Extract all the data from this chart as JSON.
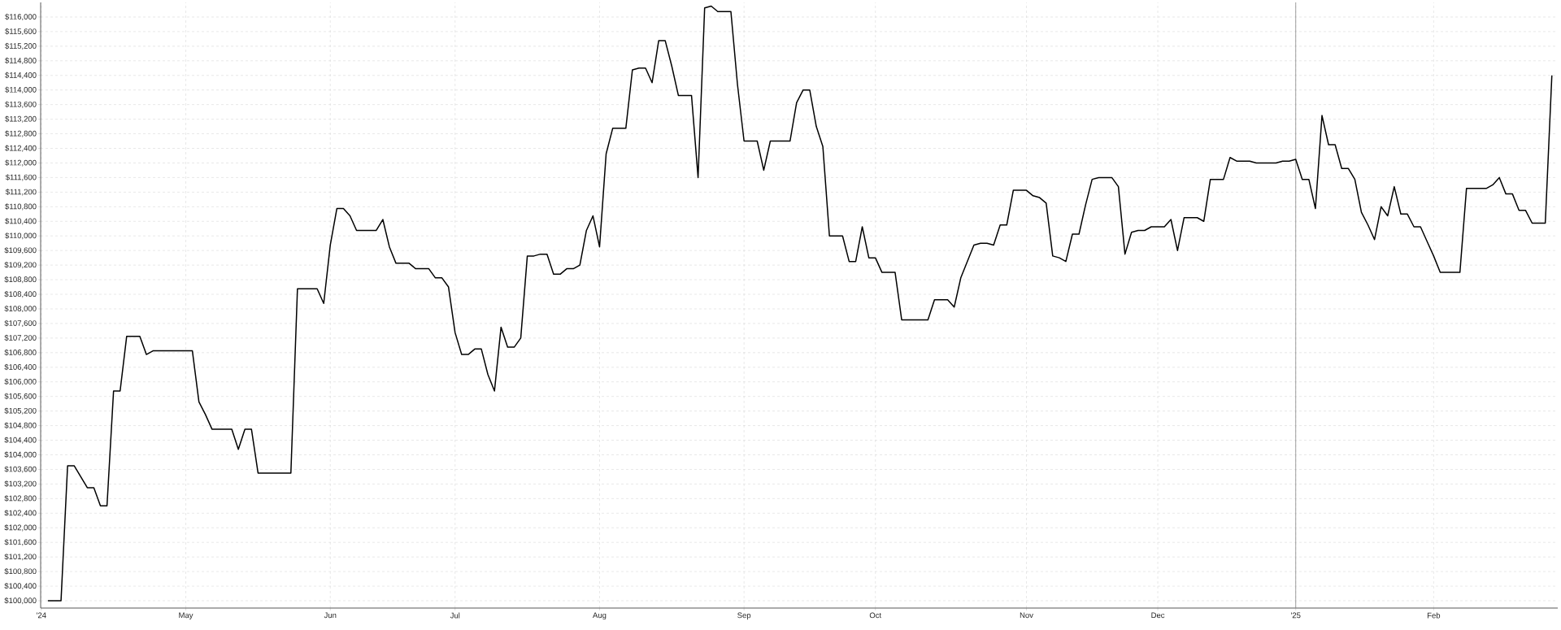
{
  "chart_data": {
    "type": "line",
    "categories": [
      "'24",
      null,
      null,
      null,
      null,
      null,
      null,
      null,
      null,
      null,
      null,
      null,
      null,
      null,
      null,
      null,
      null,
      null,
      null,
      null,
      null,
      null,
      "May",
      null,
      null,
      null,
      null,
      null,
      null,
      null,
      null,
      null,
      null,
      null,
      null,
      null,
      null,
      null,
      null,
      null,
      null,
      null,
      null,
      null,
      "Jun",
      null,
      null,
      null,
      null,
      null,
      null,
      null,
      null,
      null,
      null,
      null,
      null,
      null,
      null,
      null,
      null,
      null,
      null,
      "Jul",
      null,
      null,
      null,
      null,
      null,
      null,
      null,
      null,
      null,
      null,
      null,
      null,
      null,
      null,
      null,
      null,
      null,
      null,
      null,
      null,
      null,
      "Aug",
      null,
      null,
      null,
      null,
      null,
      null,
      null,
      null,
      null,
      null,
      null,
      null,
      null,
      null,
      null,
      null,
      null,
      null,
      null,
      null,
      null,
      "Sep",
      null,
      null,
      null,
      null,
      null,
      null,
      null,
      null,
      null,
      null,
      null,
      null,
      null,
      null,
      null,
      null,
      null,
      null,
      null,
      "Oct",
      null,
      null,
      null,
      null,
      null,
      null,
      null,
      null,
      null,
      null,
      null,
      null,
      null,
      null,
      null,
      null,
      null,
      null,
      null,
      null,
      null,
      null,
      "Nov",
      null,
      null,
      null,
      null,
      null,
      null,
      null,
      null,
      null,
      null,
      null,
      null,
      null,
      null,
      null,
      null,
      null,
      null,
      null,
      "Dec",
      null,
      null,
      null,
      null,
      null,
      null,
      null,
      null,
      null,
      null,
      null,
      null,
      null,
      null,
      null,
      null,
      null,
      null,
      null,
      null,
      "'25",
      null,
      null,
      null,
      null,
      null,
      null,
      null,
      null,
      null,
      null,
      null,
      null,
      null,
      null,
      null,
      null,
      null,
      null,
      null,
      null,
      "Feb",
      null,
      null,
      null,
      null,
      null,
      null,
      null,
      null,
      null,
      null,
      null,
      null,
      null,
      null,
      null,
      null,
      null,
      null
    ],
    "series": [
      {
        "color": "#000000",
        "values": [
          null,
          100000,
          100000,
          100000,
          103700,
          103700,
          103400,
          103100,
          103100,
          102600,
          102600,
          105750,
          105750,
          107250,
          107250,
          107250,
          106750,
          106850,
          106850,
          106850,
          106850,
          106850,
          106850,
          106850,
          105450,
          105100,
          104700,
          104700,
          104700,
          104700,
          104150,
          104700,
          104700,
          103500,
          103500,
          103500,
          103500,
          103500,
          103500,
          108550,
          108550,
          108550,
          108550,
          108150,
          109750,
          110750,
          110750,
          110550,
          110150,
          110150,
          110150,
          110150,
          110450,
          109700,
          109250,
          109250,
          109250,
          109100,
          109100,
          109100,
          108850,
          108850,
          108600,
          107350,
          106750,
          106750,
          106900,
          106900,
          106200,
          105750,
          107500,
          106950,
          106950,
          107200,
          109450,
          109450,
          109500,
          109500,
          108950,
          108950,
          109100,
          109100,
          109200,
          110150,
          110550,
          109700,
          112250,
          112950,
          112950,
          112950,
          114550,
          114600,
          114600,
          114200,
          115350,
          115350,
          114650,
          113850,
          113850,
          113850,
          111600,
          116250,
          116300,
          116150,
          116150,
          116150,
          114150,
          112600,
          112600,
          112600,
          111800,
          112600,
          112600,
          112600,
          112600,
          113650,
          114000,
          114000,
          113000,
          112450,
          110000,
          110000,
          110000,
          109300,
          109300,
          110250,
          109400,
          109400,
          109000,
          109000,
          109000,
          107700,
          107700,
          107700,
          107700,
          107700,
          108250,
          108250,
          108250,
          108050,
          108850,
          109300,
          109750,
          109800,
          109800,
          109750,
          110300,
          110300,
          111250,
          111250,
          111250,
          111100,
          111050,
          110900,
          109450,
          109400,
          109300,
          110050,
          110050,
          110850,
          111550,
          111600,
          111600,
          111600,
          111350,
          109500,
          110100,
          110150,
          110150,
          110250,
          110250,
          110250,
          110450,
          109600,
          110500,
          110500,
          110500,
          110400,
          111550,
          111550,
          111550,
          112150,
          112050,
          112050,
          112050,
          112000,
          112000,
          112000,
          112000,
          112050,
          112050,
          112100,
          111550,
          111550,
          110750,
          113300,
          112500,
          112500,
          111850,
          111850,
          111550,
          110650,
          110300,
          109900,
          110800,
          110550,
          111350,
          110600,
          110600,
          110250,
          110250,
          109850,
          109450,
          109000,
          109000,
          109000,
          109000,
          111300,
          111300,
          111300,
          111300,
          111400,
          111600,
          111150,
          111150,
          110700,
          110700,
          110350,
          110350,
          110350,
          114400
        ]
      }
    ],
    "ylim": [
      99800,
      116400
    ],
    "yticks": [
      {
        "value": 100000,
        "label": "$100,000"
      },
      {
        "value": 100400,
        "label": "$100,400"
      },
      {
        "value": 100800,
        "label": "$100,800"
      },
      {
        "value": 101200,
        "label": "$101,200"
      },
      {
        "value": 101600,
        "label": "$101,600"
      },
      {
        "value": 102000,
        "label": "$102,000"
      },
      {
        "value": 102400,
        "label": "$102,400"
      },
      {
        "value": 102800,
        "label": "$102,800"
      },
      {
        "value": 103200,
        "label": "$103,200"
      },
      {
        "value": 103600,
        "label": "$103,600"
      },
      {
        "value": 104000,
        "label": "$104,000"
      },
      {
        "value": 104400,
        "label": "$104,400"
      },
      {
        "value": 104800,
        "label": "$104,800"
      },
      {
        "value": 105200,
        "label": "$105,200"
      },
      {
        "value": 105600,
        "label": "$105,600"
      },
      {
        "value": 106000,
        "label": "$106,000"
      },
      {
        "value": 106400,
        "label": "$106,400"
      },
      {
        "value": 106800,
        "label": "$106,800"
      },
      {
        "value": 107200,
        "label": "$107,200"
      },
      {
        "value": 107600,
        "label": "$107,600"
      },
      {
        "value": 108000,
        "label": "$108,000"
      },
      {
        "value": 108400,
        "label": "$108,400"
      },
      {
        "value": 108800,
        "label": "$108,800"
      },
      {
        "value": 109200,
        "label": "$109,200"
      },
      {
        "value": 109600,
        "label": "$109,600"
      },
      {
        "value": 110000,
        "label": "$110,000"
      },
      {
        "value": 110400,
        "label": "$110,400"
      },
      {
        "value": 110800,
        "label": "$110,800"
      },
      {
        "value": 111200,
        "label": "$111,200"
      },
      {
        "value": 111600,
        "label": "$111,600"
      },
      {
        "value": 112000,
        "label": "$112,000"
      },
      {
        "value": 112400,
        "label": "$112,400"
      },
      {
        "value": 112800,
        "label": "$112,800"
      },
      {
        "value": 113200,
        "label": "$113,200"
      },
      {
        "value": 113600,
        "label": "$113,600"
      },
      {
        "value": 114000,
        "label": "$114,000"
      },
      {
        "value": 114400,
        "label": "$114,400"
      },
      {
        "value": 114800,
        "label": "$114,800"
      },
      {
        "value": 115200,
        "label": "$115,200"
      },
      {
        "value": 115600,
        "label": "$115,600"
      },
      {
        "value": 116000,
        "label": "$116,000"
      }
    ],
    "grid": true,
    "ref_lines": [
      {
        "axis": "x",
        "value": "'25",
        "color": "#888888"
      }
    ]
  }
}
